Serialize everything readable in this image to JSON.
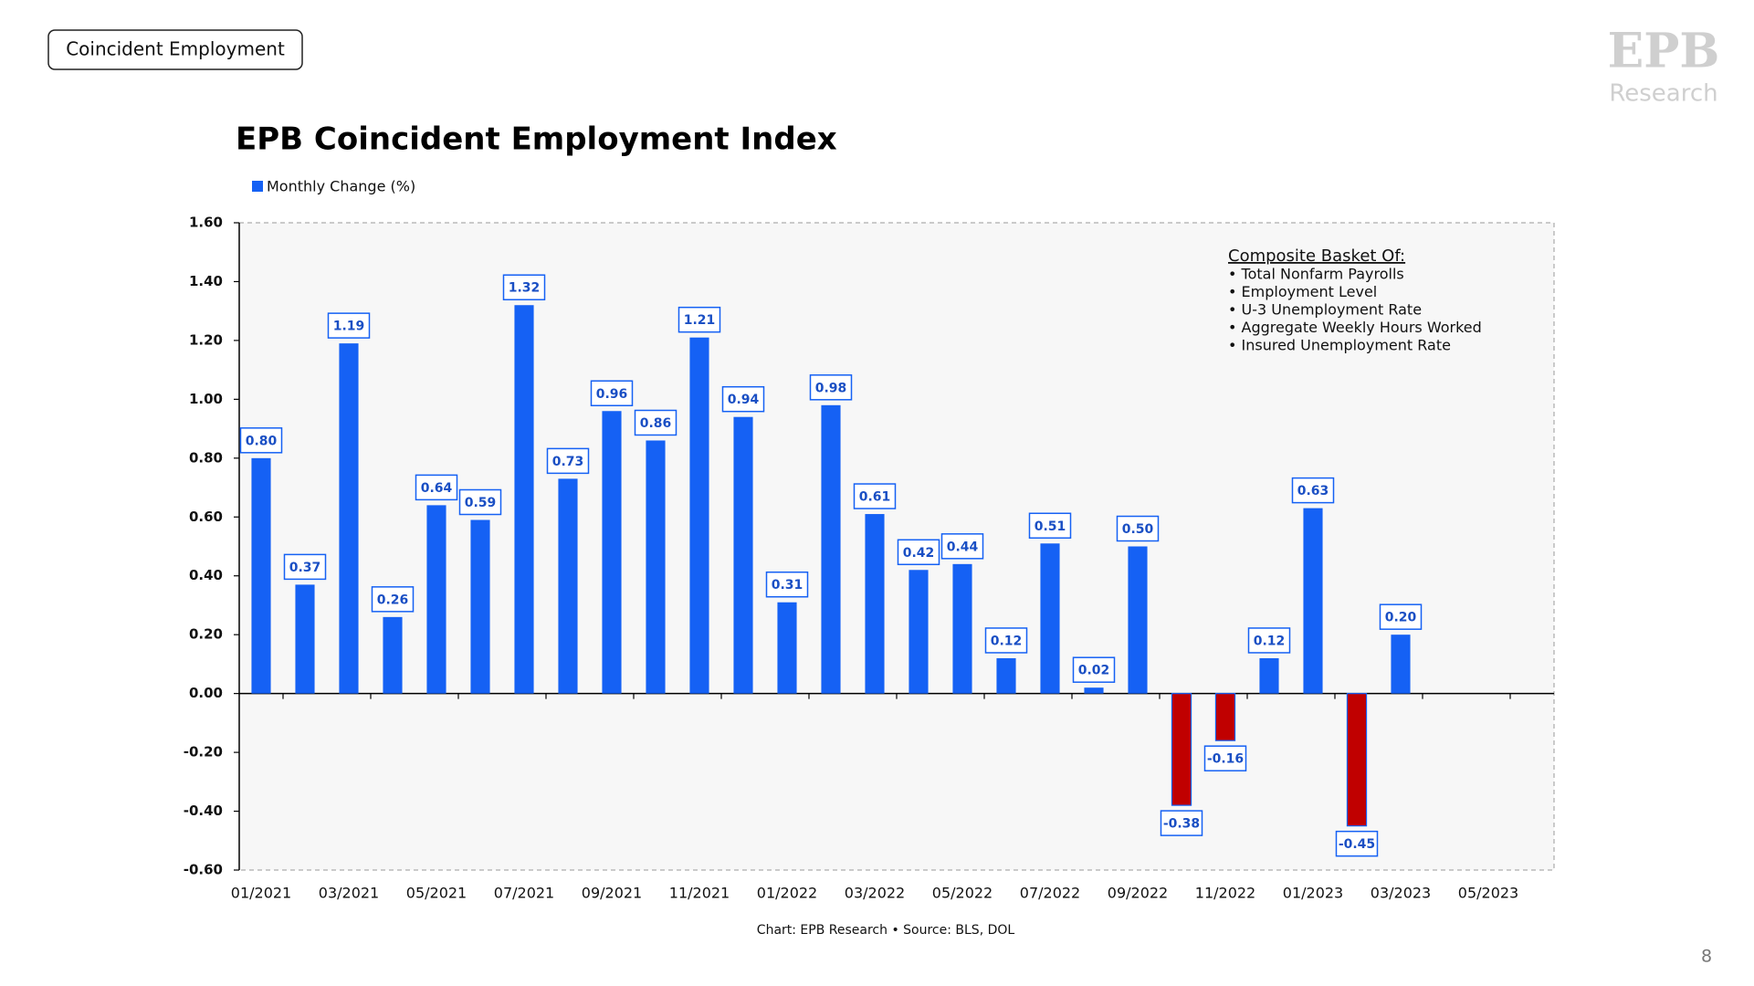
{
  "header": {
    "label": "Coincident Employment"
  },
  "logo": {
    "mark": "EPB",
    "name": "Research"
  },
  "page_number": "8",
  "chart_data": {
    "type": "bar",
    "title": "EPB Coincident Employment Index",
    "source": "Chart: EPB Research • Source: BLS, DOL",
    "annotation": {
      "title": "Composite Basket Of:",
      "items": [
        "• Total Nonfarm Payrolls",
        "• Employment Level",
        "• U-3 Unemployment Rate",
        "• Aggregate Weekly Hours Worked",
        "• Insured Unemployment Rate"
      ]
    },
    "categories": [
      "01/2021",
      null,
      "03/2021",
      null,
      "05/2021",
      null,
      "07/2021",
      null,
      "09/2021",
      null,
      "11/2021",
      null,
      "01/2022",
      null,
      "03/2022",
      null,
      "05/2022",
      null,
      "07/2022",
      null,
      "09/2022",
      null,
      "11/2022",
      null,
      "01/2023",
      null,
      "03/2023",
      null,
      "05/2023",
      null
    ],
    "series": [
      {
        "name": "Monthly Change (%)",
        "color": "#1561f4",
        "negative_color": "#c00000",
        "values": [
          0.8,
          0.37,
          1.19,
          0.26,
          0.64,
          0.59,
          1.32,
          0.73,
          0.96,
          0.86,
          1.21,
          0.94,
          0.31,
          0.98,
          0.61,
          0.42,
          0.44,
          0.12,
          0.51,
          0.02,
          0.5,
          -0.38,
          -0.16,
          0.12,
          0.63,
          -0.45,
          0.2,
          null,
          null,
          null
        ],
        "value_labels": [
          "0.80",
          "0.37",
          "1.19",
          "0.26",
          "0.64",
          "0.59",
          "1.32",
          "0.73",
          "0.96",
          "0.86",
          "1.21",
          "0.94",
          "0.31",
          "0.98",
          "0.61",
          "0.42",
          "0.44",
          "0.12",
          "0.51",
          "0.02",
          "0.50",
          "-0.38",
          "-0.16",
          "0.12",
          "0.63",
          "-0.45",
          "0.20",
          null,
          null,
          null
        ]
      }
    ],
    "ylim": [
      -0.6,
      1.6
    ],
    "yticks": [
      {
        "value": -0.6,
        "label": "-0.60"
      },
      {
        "value": -0.4,
        "label": "-0.40"
      },
      {
        "value": -0.2,
        "label": "-0.20"
      },
      {
        "value": 0,
        "label": "0.00"
      },
      {
        "value": 0.2,
        "label": "0.20"
      },
      {
        "value": 0.4,
        "label": "0.40"
      },
      {
        "value": 0.6,
        "label": "0.60"
      },
      {
        "value": 0.8,
        "label": "0.80"
      },
      {
        "value": 1.0,
        "label": "1.00"
      },
      {
        "value": 1.2,
        "label": "1.20"
      },
      {
        "value": 1.4,
        "label": "1.40"
      },
      {
        "value": 1.6,
        "label": "1.60"
      }
    ]
  }
}
